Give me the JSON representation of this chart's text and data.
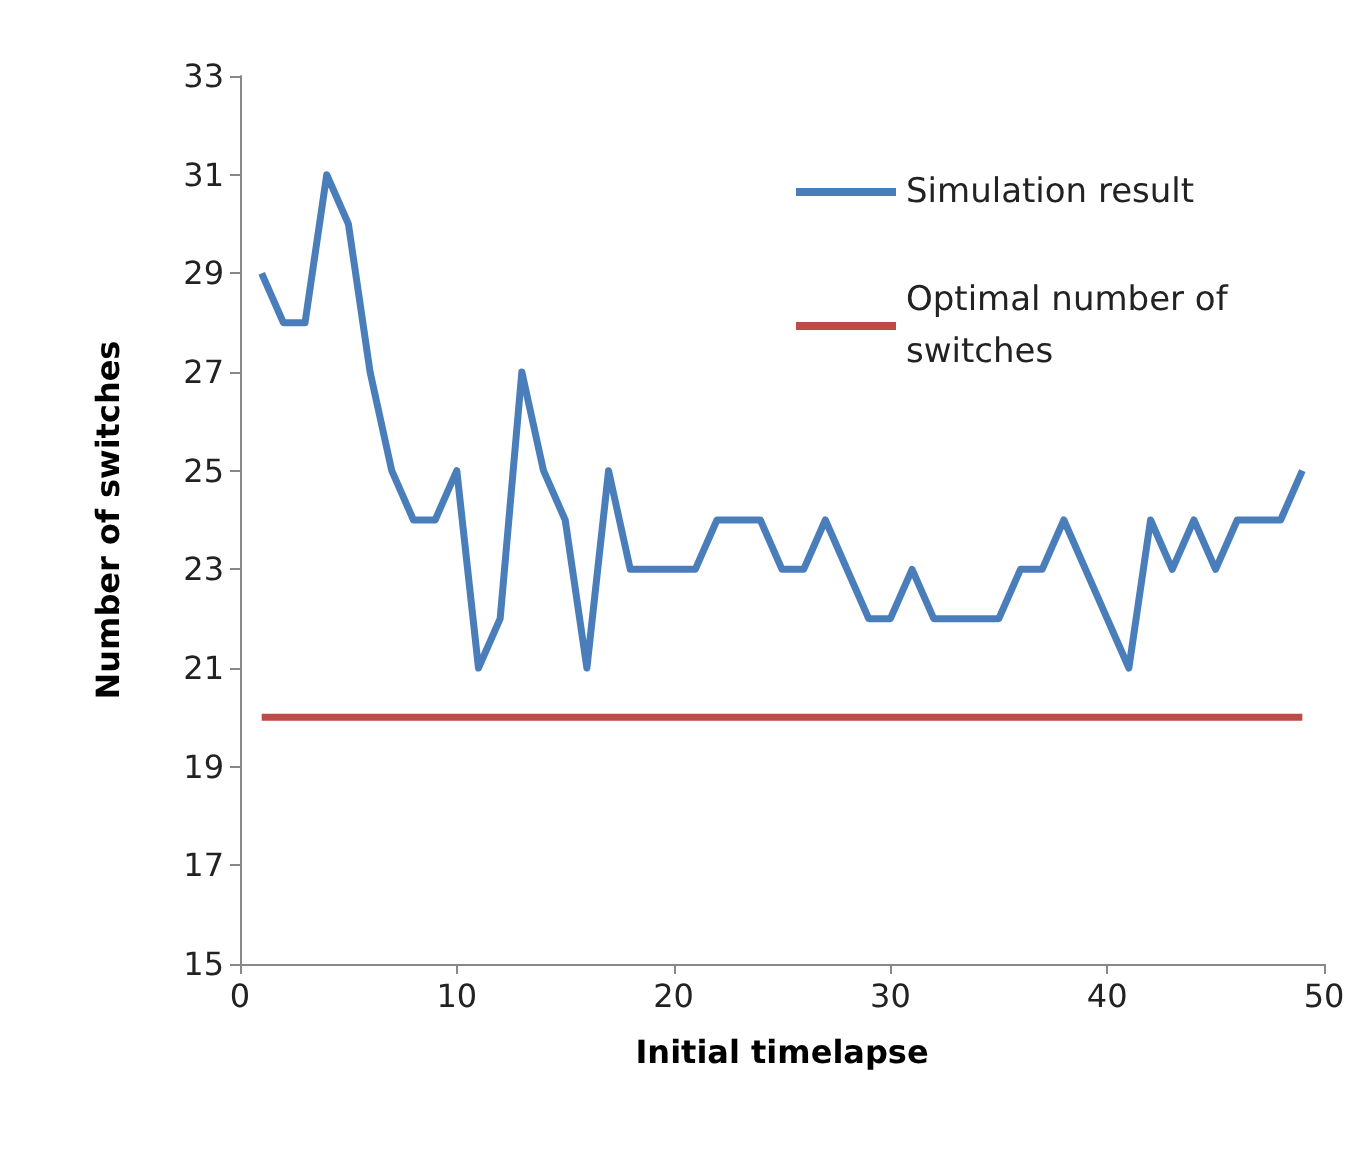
{
  "chart_data": {
    "type": "line",
    "xlabel": "Initial timelapse",
    "ylabel": "Number of switches",
    "x": [
      1,
      2,
      3,
      4,
      5,
      6,
      7,
      8,
      9,
      10,
      11,
      12,
      13,
      14,
      15,
      16,
      17,
      18,
      19,
      20,
      21,
      22,
      23,
      24,
      25,
      26,
      27,
      28,
      29,
      30,
      31,
      32,
      33,
      34,
      35,
      36,
      37,
      38,
      39,
      40,
      41,
      42,
      43,
      44,
      45,
      46,
      47,
      48,
      49
    ],
    "series": [
      {
        "name": "Simulation result",
        "color": "#4a7ebb",
        "values": [
          29,
          28,
          28,
          31,
          30,
          27,
          25,
          24,
          24,
          25,
          21,
          22,
          27,
          25,
          24,
          21,
          25,
          23,
          23,
          23,
          23,
          24,
          24,
          24,
          23,
          23,
          24,
          23,
          22,
          22,
          23,
          22,
          22,
          22,
          22,
          23,
          23,
          24,
          23,
          22,
          21,
          24,
          23,
          24,
          23,
          24,
          24,
          24,
          25
        ]
      },
      {
        "name": "Optimal number of switches",
        "color": "#be4b48",
        "x": [
          1,
          49
        ],
        "values": [
          20,
          20
        ]
      }
    ],
    "xlim": [
      0,
      50
    ],
    "xticks": [
      0,
      10,
      20,
      30,
      40,
      50
    ],
    "ylim": [
      15,
      33
    ],
    "yticks": [
      15,
      17,
      19,
      21,
      23,
      25,
      27,
      29,
      31,
      33
    ],
    "grid": false,
    "legend": "top right",
    "marker": "none",
    "line_style": "solid"
  }
}
